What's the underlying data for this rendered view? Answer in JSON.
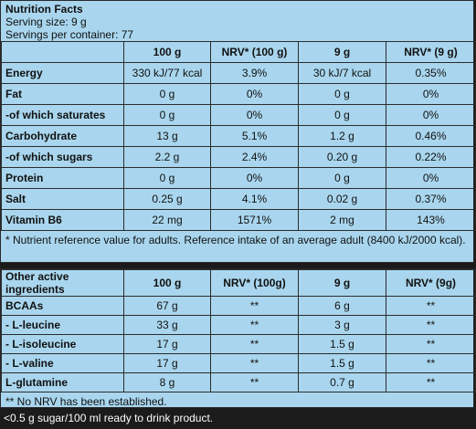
{
  "facts": {
    "title": "Nutrition Facts",
    "serving_size": "Serving size: 9 g",
    "servings": "Servings per container: 77"
  },
  "table1": {
    "headers": [
      "",
      "100 g",
      "NRV* (100 g)",
      "9 g",
      "NRV* (9 g)"
    ],
    "rows": [
      {
        "label": "Energy",
        "v100": "330 kJ/77 kcal",
        "nrv100": "3.9%",
        "v9": "30 kJ/7 kcal",
        "nrv9": "0.35%"
      },
      {
        "label": "Fat",
        "v100": "0 g",
        "nrv100": "0%",
        "v9": "0 g",
        "nrv9": "0%"
      },
      {
        "label": "-of which saturates",
        "v100": "0 g",
        "nrv100": "0%",
        "v9": "0 g",
        "nrv9": "0%"
      },
      {
        "label": "Carbohydrate",
        "v100": "13 g",
        "nrv100": "5.1%",
        "v9": "1.2 g",
        "nrv9": "0.46%"
      },
      {
        "label": "-of which sugars",
        "v100": "2.2 g",
        "nrv100": "2.4%",
        "v9": "0.20 g",
        "nrv9": "0.22%"
      },
      {
        "label": "Protein",
        "v100": "0 g",
        "nrv100": "0%",
        "v9": "0 g",
        "nrv9": "0%"
      },
      {
        "label": "Salt",
        "v100": "0.25 g",
        "nrv100": "4.1%",
        "v9": "0.02 g",
        "nrv9": "0.37%"
      },
      {
        "label": "Vitamin B6",
        "v100": "22 mg",
        "nrv100": "1571%",
        "v9": "2 mg",
        "nrv9": "143%"
      }
    ],
    "footnote": "* Nutrient reference value for adults. Reference intake of an average adult (8400 kJ/2000 kcal)."
  },
  "table2": {
    "headers": [
      "Other active ingredients",
      "100 g",
      "NRV* (100g)",
      "9 g",
      "NRV* (9g)"
    ],
    "rows": [
      {
        "label": "BCAAs",
        "v100": "67 g",
        "nrv100": "**",
        "v9": "6 g",
        "nrv9": "**"
      },
      {
        "label": "- L-leucine",
        "v100": "33 g",
        "nrv100": "**",
        "v9": "3 g",
        "nrv9": "**"
      },
      {
        "label": "- L-isoleucine",
        "v100": "17 g",
        "nrv100": "**",
        "v9": "1.5 g",
        "nrv9": "**"
      },
      {
        "label": "- L-valine",
        "v100": "17 g",
        "nrv100": "**",
        "v9": "1.5 g",
        "nrv9": "**"
      },
      {
        "label": "L-glutamine",
        "v100": "8 g",
        "nrv100": "**",
        "v9": "0.7 g",
        "nrv9": "**"
      }
    ],
    "footnote": "** No NRV has been established."
  },
  "bottom_note": "<0.5 g sugar/100 ml ready to drink product."
}
